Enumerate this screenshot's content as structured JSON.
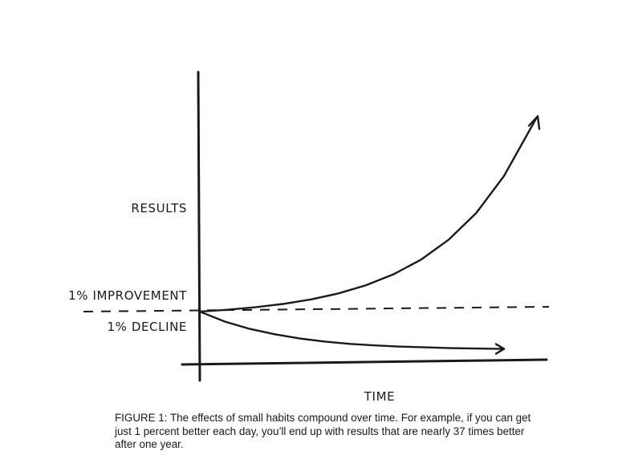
{
  "chart_data": {
    "type": "line",
    "xlabel": "TIME",
    "ylabel": "RESULTS",
    "baseline_label": "",
    "series": [
      {
        "name": "1% IMPROVEMENT",
        "x": [
          0,
          30,
          60,
          90,
          120,
          150,
          180,
          210,
          240,
          270,
          300,
          330,
          365
        ],
        "values": [
          1,
          1.35,
          1.82,
          2.45,
          3.3,
          4.45,
          6.0,
          8.1,
          10.9,
          14.7,
          19.8,
          26.8,
          37.8
        ]
      },
      {
        "name": "1% DECLINE",
        "x": [
          0,
          30,
          60,
          90,
          120,
          150,
          180,
          210,
          240,
          270,
          300,
          330,
          365
        ],
        "values": [
          1,
          0.74,
          0.55,
          0.41,
          0.3,
          0.22,
          0.16,
          0.12,
          0.09,
          0.07,
          0.05,
          0.04,
          0.03
        ]
      }
    ],
    "xlim": [
      0,
      365
    ],
    "grid": false,
    "legend": "none"
  },
  "caption": "FIGURE 1: The effects of small habits compound over time. For example, if you can get just 1 percent better each day, you’ll end up with results that are nearly 37 times better after one year."
}
